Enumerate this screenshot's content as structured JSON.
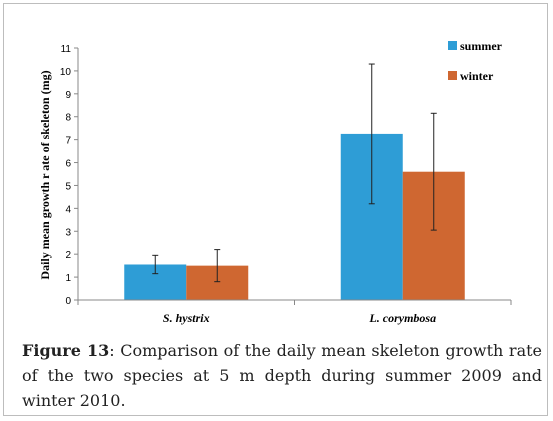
{
  "chart_data": {
    "type": "bar",
    "categories": [
      "S. hystrix",
      "L. corymbosa"
    ],
    "series": [
      {
        "name": "summer",
        "values": [
          1.55,
          7.25
        ],
        "error": [
          0.4,
          3.05
        ],
        "color": "#2e9dd6"
      },
      {
        "name": "winter",
        "values": [
          1.5,
          5.6
        ],
        "error": [
          0.7,
          2.55
        ],
        "color": "#cf6731"
      }
    ],
    "ylabel": "Daily mean growth r ate of skeleton (mg)",
    "xlabel": "",
    "ylim": [
      0,
      11
    ],
    "yticks": [
      "0",
      "1",
      "2",
      "3",
      "4",
      "5",
      "6",
      "7",
      "8",
      "9",
      "10",
      "11"
    ],
    "grid": false,
    "legend_position": "top-right"
  },
  "caption": {
    "label": "Figure 13",
    "text": ": Comparison of the daily mean skeleton growth rate of the two species at 5 m depth during summer 2009 and winter 2010."
  }
}
